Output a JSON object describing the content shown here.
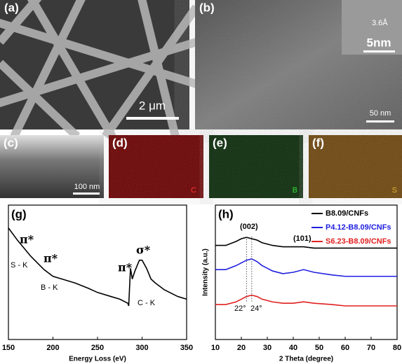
{
  "panels": [
    {
      "label": "(a)",
      "scale": "2 μm"
    },
    {
      "label": "(b)",
      "scale": "50 nm",
      "inset_spacing": "3.6Å",
      "inset_scale": "5nm"
    },
    {
      "label": "(c)",
      "scale": "100 nm"
    },
    {
      "label": "(d)",
      "element": "C"
    },
    {
      "label": "(e)",
      "element": "B"
    },
    {
      "label": "(f)",
      "element": "S"
    }
  ],
  "chart_data": [
    {
      "type": "line",
      "label": "(g)",
      "x_label": "Energy Loss (eV)",
      "x": [
        150,
        160,
        175,
        190,
        200,
        215,
        225,
        240,
        250,
        265,
        275,
        284,
        285,
        287,
        289,
        292,
        297,
        300,
        305,
        310,
        315,
        325,
        340,
        350
      ],
      "series": [
        {
          "color": "#000000",
          "values": [
            83,
            74,
            62,
            52,
            47,
            44,
            42,
            38,
            35,
            32,
            30,
            27,
            25,
            53,
            45,
            51,
            59,
            59,
            53,
            45,
            42,
            37,
            32,
            30
          ]
        }
      ],
      "xlim": [
        150,
        350
      ],
      "xticks": [
        150,
        200,
        250,
        300,
        350
      ],
      "ylim": [
        0,
        100
      ],
      "annotations": [
        "π*",
        "S - K",
        "π*",
        "B - K",
        "π*",
        "σ*",
        "C - K"
      ]
    },
    {
      "type": "line",
      "label": "(h)",
      "x_label": "2 Theta (degree)",
      "y_label": "Intensity (a.u.)",
      "x": [
        10,
        14,
        18,
        20,
        22,
        24,
        26,
        28,
        32,
        36,
        40,
        44,
        48,
        55,
        60,
        70,
        80
      ],
      "series": [
        {
          "name": "B8.09/CNFs",
          "color": "#000000",
          "values": [
            70,
            70,
            73,
            75,
            76,
            75,
            74,
            72,
            70,
            69,
            69,
            69,
            68,
            68,
            68,
            68,
            68
          ]
        },
        {
          "name": "P4.12-B8.09/CNFs",
          "color": "#1f1fe0",
          "values": [
            52,
            52,
            55,
            57,
            59,
            60,
            58,
            55,
            51,
            49,
            50,
            52,
            50,
            48,
            47,
            47,
            47
          ]
        },
        {
          "name": "S6.23-B8.09/CNFs",
          "color": "#e02020",
          "values": [
            26,
            26,
            28,
            30,
            32,
            33,
            32,
            30,
            28,
            27,
            27,
            28,
            27,
            26,
            25,
            25,
            25
          ]
        }
      ],
      "xlim": [
        10,
        80
      ],
      "xticks": [
        10,
        20,
        30,
        40,
        50,
        60,
        70,
        80
      ],
      "ylim": [
        0,
        100
      ],
      "annotations": [
        "(002)",
        "(101)",
        "22°",
        "24°"
      ]
    }
  ]
}
